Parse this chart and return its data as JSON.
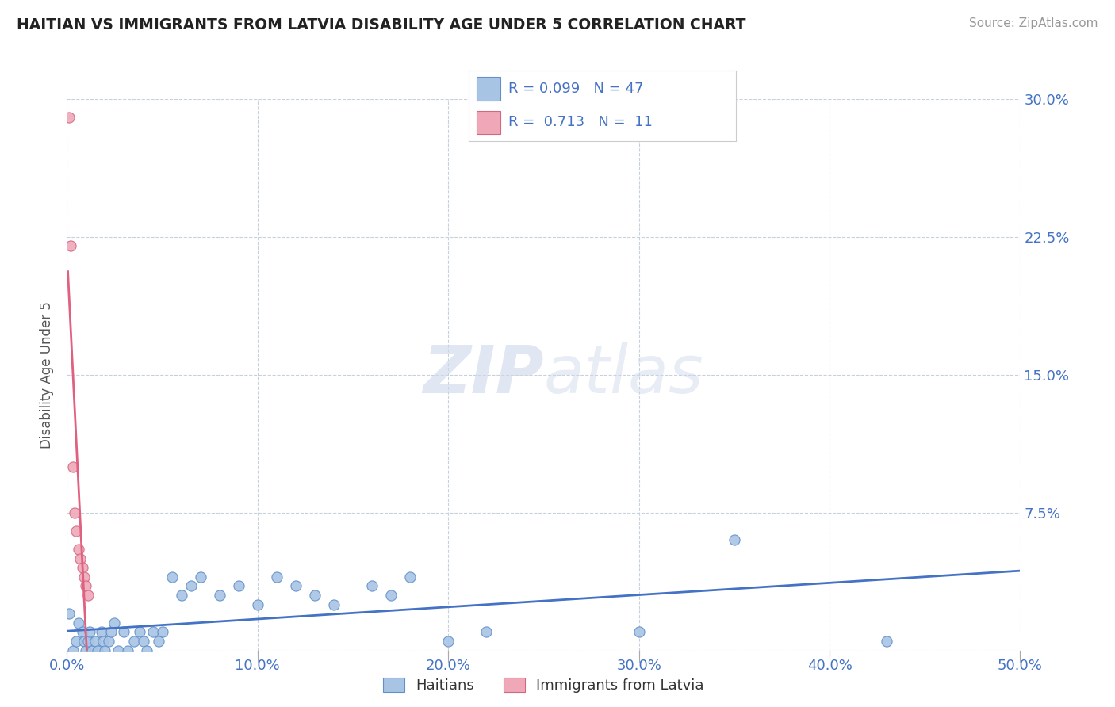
{
  "title": "HAITIAN VS IMMIGRANTS FROM LATVIA DISABILITY AGE UNDER 5 CORRELATION CHART",
  "source": "Source: ZipAtlas.com",
  "ylabel": "Disability Age Under 5",
  "xlim": [
    0.0,
    0.5
  ],
  "ylim": [
    0.0,
    0.3
  ],
  "xtick_vals": [
    0.0,
    0.1,
    0.2,
    0.3,
    0.4,
    0.5
  ],
  "xtick_labels": [
    "0.0%",
    "10.0%",
    "20.0%",
    "30.0%",
    "40.0%",
    "50.0%"
  ],
  "ytick_vals": [
    0.0,
    0.075,
    0.15,
    0.225,
    0.3
  ],
  "ytick_labels": [
    "",
    "7.5%",
    "15.0%",
    "22.5%",
    "30.0%"
  ],
  "color_haiti_fill": "#a8c4e5",
  "color_haiti_edge": "#6090c8",
  "color_latvia_fill": "#f0a8b8",
  "color_latvia_edge": "#d06880",
  "color_line_haiti": "#4472c4",
  "color_line_latvia": "#e06080",
  "color_text_blue": "#4472c4",
  "color_grid": "#c8d0dc",
  "background_color": "#ffffff",
  "watermark_text": "ZIPatlas",
  "legend_text1": "R = 0.099   N = 47",
  "legend_text2": "R =  0.713   N =  11",
  "scatter_haiti_x": [
    0.001,
    0.003,
    0.005,
    0.006,
    0.008,
    0.009,
    0.01,
    0.011,
    0.012,
    0.013,
    0.015,
    0.016,
    0.018,
    0.019,
    0.02,
    0.022,
    0.023,
    0.025,
    0.027,
    0.03,
    0.032,
    0.035,
    0.038,
    0.04,
    0.042,
    0.045,
    0.048,
    0.05,
    0.055,
    0.06,
    0.065,
    0.07,
    0.08,
    0.09,
    0.1,
    0.11,
    0.12,
    0.13,
    0.14,
    0.16,
    0.17,
    0.18,
    0.2,
    0.22,
    0.3,
    0.35,
    0.43
  ],
  "scatter_haiti_y": [
    0.02,
    0.0,
    0.005,
    0.015,
    0.01,
    0.005,
    0.0,
    0.005,
    0.01,
    0.0,
    0.005,
    0.0,
    0.01,
    0.005,
    0.0,
    0.005,
    0.01,
    0.015,
    0.0,
    0.01,
    0.0,
    0.005,
    0.01,
    0.005,
    0.0,
    0.01,
    0.005,
    0.01,
    0.04,
    0.03,
    0.035,
    0.04,
    0.03,
    0.035,
    0.025,
    0.04,
    0.035,
    0.03,
    0.025,
    0.035,
    0.03,
    0.04,
    0.005,
    0.01,
    0.01,
    0.06,
    0.005
  ],
  "scatter_latvia_x": [
    0.001,
    0.002,
    0.003,
    0.004,
    0.005,
    0.006,
    0.007,
    0.008,
    0.009,
    0.01,
    0.011
  ],
  "scatter_latvia_y": [
    0.29,
    0.22,
    0.1,
    0.075,
    0.065,
    0.055,
    0.05,
    0.045,
    0.04,
    0.035,
    0.03
  ],
  "reg_line_latvia_x_start": -0.005,
  "reg_line_latvia_x_end": 0.018
}
